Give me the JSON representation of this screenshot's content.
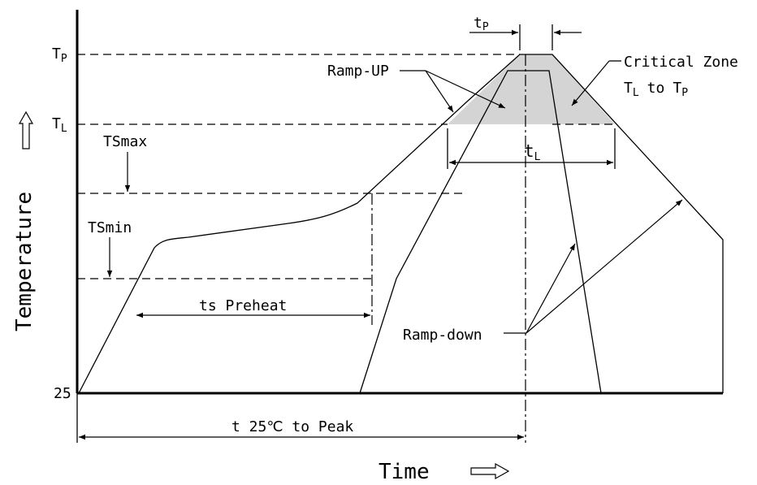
{
  "labels": {
    "tp_axis_main": "T",
    "tp_axis_sub": "P",
    "tl_axis_main": "T",
    "tl_axis_sub": "L",
    "tsmax": "TSmax",
    "tsmin": "TSmin",
    "y_axis": "Temperature",
    "y_origin": "25",
    "x_axis": "Time",
    "ramp_up": "Ramp-UP",
    "ramp_down": "Ramp-down",
    "critical_zone_line1": "Critical Zone",
    "critical_zone_tl_main": "T",
    "critical_zone_tl_sub": "L",
    "critical_zone_to": "to",
    "critical_zone_tp_main": "T",
    "critical_zone_tp_sub": "P",
    "tp_duration_main": "t",
    "tp_duration_sub": "P",
    "tl_duration_main": "t",
    "tl_duration_sub": "L",
    "ts_preheat": "ts Preheat",
    "t25_to_peak": "t 25℃ to Peak"
  },
  "colors": {
    "critical_zone_fill": "#d4d4d4",
    "ink": "#000000"
  },
  "icons": {
    "x_axis_arrow": "hollow-right-arrow-icon",
    "y_axis_arrow": "hollow-up-arrow-icon"
  }
}
